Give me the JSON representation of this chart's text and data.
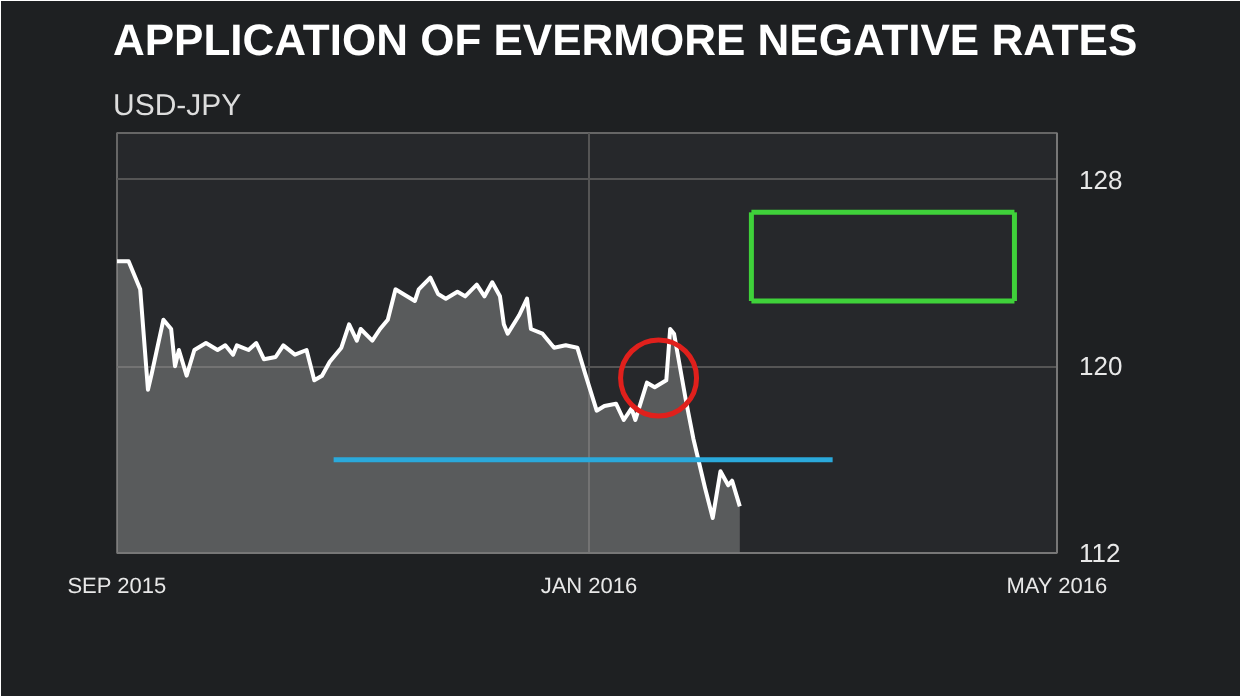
{
  "chart_data": {
    "type": "area",
    "title": "APPLICATION OF EVERMORE NEGATIVE RATES",
    "subtitle": "USD-JPY",
    "xlim": [
      "2015-09-01",
      "2016-05-01"
    ],
    "xticks": [
      {
        "value": "2015-09-01",
        "label": "SEP 2015"
      },
      {
        "value": "2016-01-01",
        "label": "JAN 2016"
      },
      {
        "value": "2016-05-01",
        "label": "MAY 2016"
      }
    ],
    "ylim": [
      112,
      130
    ],
    "yticks": [
      112,
      120,
      128
    ],
    "grid": true,
    "series": [
      {
        "color": "#ffffff",
        "x": [
          "2015-09-01",
          "2015-09-04",
          "2015-09-07",
          "2015-09-09",
          "2015-09-10",
          "2015-09-13",
          "2015-09-15",
          "2015-09-16",
          "2015-09-17",
          "2015-09-19",
          "2015-09-21",
          "2015-09-24",
          "2015-09-27",
          "2015-09-29",
          "2015-10-01",
          "2015-10-02",
          "2015-10-05",
          "2015-10-07",
          "2015-10-09",
          "2015-10-12",
          "2015-10-14",
          "2015-10-17",
          "2015-10-20",
          "2015-10-22",
          "2015-10-24",
          "2015-10-26",
          "2015-10-29",
          "2015-10-31",
          "2015-11-02",
          "2015-11-03",
          "2015-11-06",
          "2015-11-08",
          "2015-11-10",
          "2015-11-12",
          "2015-11-14",
          "2015-11-17",
          "2015-11-18",
          "2015-11-21",
          "2015-11-23",
          "2015-11-25",
          "2015-11-28",
          "2015-11-30",
          "2015-12-03",
          "2015-12-05",
          "2015-12-07",
          "2015-12-09",
          "2015-12-10",
          "2015-12-11",
          "2015-12-14",
          "2015-12-16",
          "2015-12-17",
          "2015-12-20",
          "2015-12-23",
          "2015-12-26",
          "2015-12-29",
          "2015-12-31",
          "2016-01-03",
          "2016-01-05",
          "2016-01-08",
          "2016-01-10",
          "2016-01-12",
          "2016-01-13",
          "2016-01-16",
          "2016-01-18",
          "2016-01-21",
          "2016-01-22",
          "2016-01-23",
          "2016-01-26",
          "2016-01-28",
          "2016-01-29",
          "2016-01-31",
          "2016-02-02",
          "2016-02-04",
          "2016-02-06",
          "2016-02-07",
          "2016-02-09"
        ],
        "values": [
          124.5,
          124.5,
          123.3,
          119.0,
          119.7,
          122.0,
          121.6,
          120.0,
          120.7,
          119.6,
          120.7,
          121.0,
          120.7,
          120.9,
          120.5,
          120.9,
          120.7,
          121.0,
          120.3,
          120.4,
          120.9,
          120.5,
          120.7,
          119.4,
          119.6,
          120.2,
          120.8,
          121.8,
          121.1,
          121.6,
          121.1,
          121.6,
          122.0,
          123.3,
          123.1,
          122.8,
          123.3,
          123.8,
          123.1,
          122.9,
          123.2,
          123.0,
          123.5,
          123.0,
          123.6,
          123.0,
          121.8,
          121.4,
          122.2,
          122.9,
          121.6,
          121.4,
          120.8,
          120.9,
          120.8,
          119.7,
          118.1,
          118.3,
          118.4,
          117.7,
          118.2,
          117.7,
          119.3,
          119.1,
          119.4,
          121.6,
          121.4,
          118.6,
          116.9,
          116.2,
          114.8,
          113.5,
          115.5,
          114.9,
          115.1,
          114.0
        ]
      },
      {
        "type": "line",
        "color": "#2aa9db",
        "x": [
          "2015-10-27",
          "2016-03-04"
        ],
        "values": [
          116.0,
          116.0
        ]
      },
      {
        "type": "line",
        "color": "#3fd13a",
        "x": [
          "2016-02-12",
          "2016-04-20"
        ],
        "values": [
          126.6,
          126.6
        ]
      },
      {
        "type": "line",
        "color": "#3fd13a",
        "x": [
          "2016-02-12",
          "2016-04-20"
        ],
        "values": [
          122.8,
          122.8
        ]
      },
      {
        "type": "line",
        "color": "#3fd13a",
        "x": [
          "2016-02-12",
          "2016-02-12"
        ],
        "values": [
          122.8,
          126.6
        ]
      },
      {
        "type": "line",
        "color": "#3fd13a",
        "x": [
          "2016-04-20",
          "2016-04-20"
        ],
        "values": [
          122.8,
          126.6
        ]
      },
      {
        "type": "scatter",
        "marker": "circle",
        "color": "#e0201c",
        "x": [
          "2016-01-19"
        ],
        "values": [
          119.5
        ]
      }
    ]
  }
}
